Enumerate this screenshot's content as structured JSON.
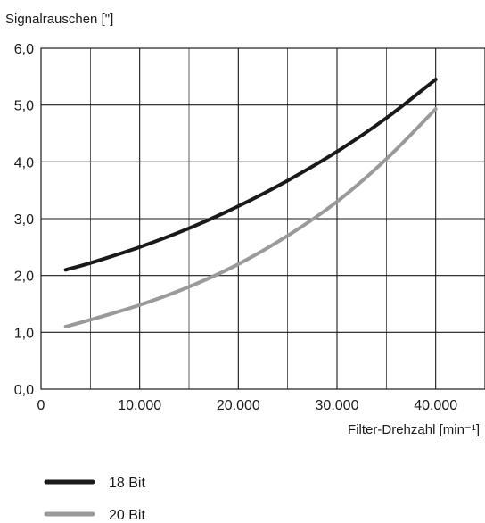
{
  "chart_data": {
    "type": "line",
    "ylabel": "Signalrauschen [\"]",
    "xlabel": "Filter-Drehzahl [min⁻¹]",
    "xlim": [
      0,
      45000
    ],
    "ylim": [
      0,
      6
    ],
    "x_ticks": [
      0,
      10000,
      20000,
      30000,
      40000
    ],
    "x_tick_labels": [
      "0",
      "10.000",
      "20.000",
      "30.000",
      "40.000"
    ],
    "y_ticks": [
      0,
      1,
      2,
      3,
      4,
      5,
      6
    ],
    "y_tick_labels": [
      "0,0",
      "1,0",
      "2,0",
      "3,0",
      "4,0",
      "5,0",
      "6,0"
    ],
    "grid": true,
    "legend_position": "bottom-left",
    "series": [
      {
        "name": "18 Bit",
        "color": "#1a1a1a",
        "points": [
          [
            2500,
            2.1
          ],
          [
            5000,
            2.22
          ],
          [
            10000,
            2.5
          ],
          [
            15000,
            2.83
          ],
          [
            20000,
            3.22
          ],
          [
            25000,
            3.67
          ],
          [
            30000,
            4.18
          ],
          [
            35000,
            4.77
          ],
          [
            40000,
            5.45
          ]
        ]
      },
      {
        "name": "20 Bit",
        "color": "#9a9a9a",
        "points": [
          [
            2500,
            1.1
          ],
          [
            5000,
            1.22
          ],
          [
            10000,
            1.48
          ],
          [
            15000,
            1.8
          ],
          [
            20000,
            2.2
          ],
          [
            25000,
            2.7
          ],
          [
            30000,
            3.3
          ],
          [
            35000,
            4.05
          ],
          [
            40000,
            4.93
          ]
        ]
      }
    ]
  }
}
